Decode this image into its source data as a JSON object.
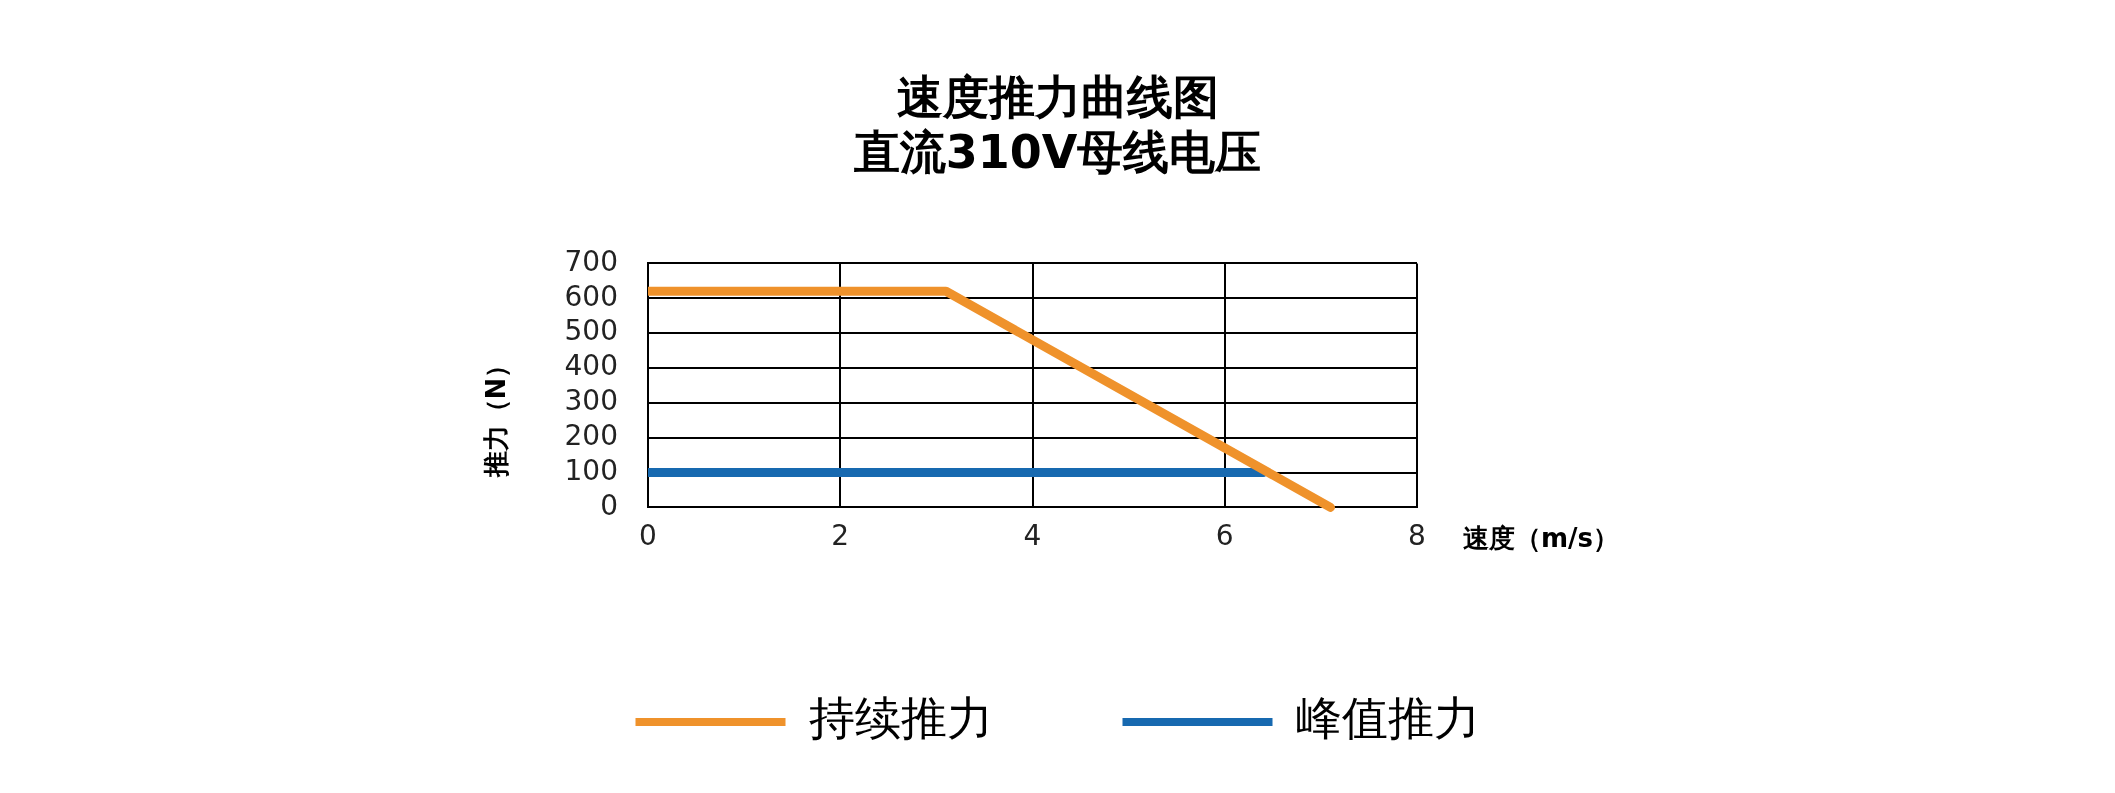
{
  "chart_data": {
    "type": "line",
    "title": "速度推力曲线图",
    "subtitle": "直流310V母线电压",
    "xlabel": "速度（m/s）",
    "ylabel": "推力（N）",
    "xlim": [
      0,
      8
    ],
    "xticks": [
      0,
      2,
      4,
      6,
      8
    ],
    "ylim": [
      0,
      700
    ],
    "yticks": [
      0,
      100,
      200,
      300,
      400,
      500,
      600,
      700
    ],
    "series": [
      {
        "name": "持续推力",
        "color": "#ef922b",
        "x": [
          0,
          3.1,
          7.1
        ],
        "values": [
          620,
          620,
          0
        ]
      },
      {
        "name": "峰值推力",
        "color": "#1769b0",
        "x": [
          0,
          6.4
        ],
        "values": [
          100,
          100
        ]
      }
    ],
    "grid": true,
    "legend": "bottom",
    "marker": "none",
    "line_style": "solid"
  }
}
